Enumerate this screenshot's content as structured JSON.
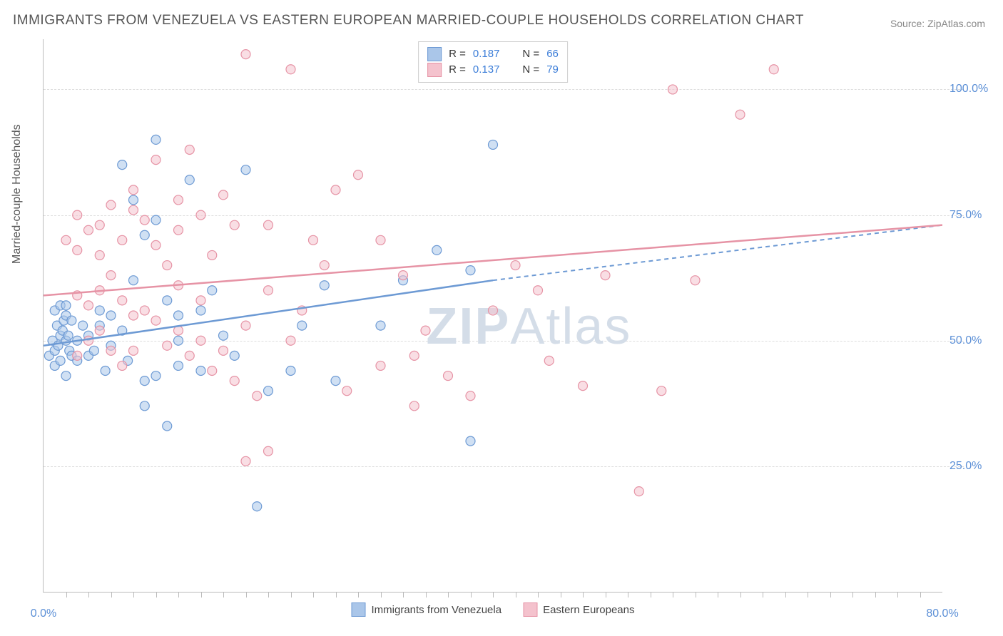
{
  "title": "IMMIGRANTS FROM VENEZUELA VS EASTERN EUROPEAN MARRIED-COUPLE HOUSEHOLDS CORRELATION CHART",
  "source": "Source: ZipAtlas.com",
  "y_axislabel": "Married-couple Households",
  "watermark_a": "ZIP",
  "watermark_b": "Atlas",
  "chart": {
    "type": "scatter",
    "xlim": [
      0,
      80
    ],
    "ylim": [
      0,
      110
    ],
    "x_ticks": [
      0,
      80
    ],
    "x_tick_labels": [
      "0.0%",
      "80.0%"
    ],
    "x_minor_ticks": [
      2,
      4,
      6,
      8,
      10,
      12,
      14,
      16,
      18,
      20,
      22,
      24,
      26,
      28,
      30,
      32,
      34,
      36,
      38,
      40,
      42,
      44,
      46,
      48,
      50,
      52,
      54,
      56,
      58,
      60,
      62,
      64,
      66,
      68,
      70,
      72,
      74,
      76,
      78
    ],
    "y_gridlines": [
      25,
      50,
      75,
      100
    ],
    "y_tick_labels": [
      "25.0%",
      "50.0%",
      "75.0%",
      "100.0%"
    ],
    "background_color": "#ffffff",
    "grid_color": "#dddddd",
    "point_radius": 6.5,
    "point_opacity": 0.55,
    "series": [
      {
        "name": "Immigrants from Venezuela",
        "fill": "#aac6e9",
        "stroke": "#6d9ad4",
        "R": "0.187",
        "N": "66",
        "trend": {
          "x1": 0,
          "y1": 49,
          "x2": 40,
          "y2": 62,
          "x2_dash": 80,
          "y2_dash": 73
        },
        "points": [
          [
            0.5,
            47
          ],
          [
            0.8,
            50
          ],
          [
            1,
            48
          ],
          [
            1.2,
            53
          ],
          [
            1,
            45
          ],
          [
            1.5,
            51
          ],
          [
            1.3,
            49
          ],
          [
            1.8,
            54
          ],
          [
            1.5,
            46
          ],
          [
            2,
            50
          ],
          [
            2,
            43
          ],
          [
            1.7,
            52
          ],
          [
            2.3,
            48
          ],
          [
            2,
            55
          ],
          [
            2.5,
            47
          ],
          [
            2.2,
            51
          ],
          [
            1,
            56
          ],
          [
            1.5,
            57
          ],
          [
            2,
            57
          ],
          [
            2.5,
            54
          ],
          [
            3,
            50
          ],
          [
            3.5,
            53
          ],
          [
            3,
            46
          ],
          [
            4,
            47
          ],
          [
            4,
            51
          ],
          [
            4.5,
            48
          ],
          [
            5,
            53
          ],
          [
            5,
            56
          ],
          [
            5.5,
            44
          ],
          [
            6,
            49
          ],
          [
            6,
            55
          ],
          [
            7,
            52
          ],
          [
            7.5,
            46
          ],
          [
            8,
            78
          ],
          [
            7,
            85
          ],
          [
            10,
            90
          ],
          [
            9,
            71
          ],
          [
            10,
            74
          ],
          [
            11,
            58
          ],
          [
            12,
            50
          ],
          [
            12,
            55
          ],
          [
            13,
            82
          ],
          [
            14,
            56
          ],
          [
            14,
            44
          ],
          [
            15,
            60
          ],
          [
            16,
            51
          ],
          [
            17,
            47
          ],
          [
            12,
            45
          ],
          [
            9,
            42
          ],
          [
            10,
            43
          ],
          [
            18,
            84
          ],
          [
            20,
            40
          ],
          [
            19,
            17
          ],
          [
            11,
            33
          ],
          [
            9,
            37
          ],
          [
            22,
            44
          ],
          [
            23,
            53
          ],
          [
            25,
            61
          ],
          [
            26,
            42
          ],
          [
            30,
            53
          ],
          [
            32,
            62
          ],
          [
            35,
            68
          ],
          [
            38,
            64
          ],
          [
            38,
            30
          ],
          [
            40,
            89
          ],
          [
            8,
            62
          ]
        ]
      },
      {
        "name": "Eastern Europeans",
        "fill": "#f4c2cd",
        "stroke": "#e693a5",
        "R": "0.137",
        "N": "79",
        "trend": {
          "x1": 0,
          "y1": 59,
          "x2": 80,
          "y2": 73
        },
        "points": [
          [
            2,
            70
          ],
          [
            3,
            68
          ],
          [
            3,
            75
          ],
          [
            4,
            72
          ],
          [
            5,
            73
          ],
          [
            5,
            67
          ],
          [
            6,
            77
          ],
          [
            7,
            70
          ],
          [
            8,
            76
          ],
          [
            8,
            80
          ],
          [
            9,
            74
          ],
          [
            10,
            69
          ],
          [
            10,
            86
          ],
          [
            12,
            78
          ],
          [
            12,
            72
          ],
          [
            13,
            88
          ],
          [
            14,
            75
          ],
          [
            15,
            67
          ],
          [
            16,
            79
          ],
          [
            17,
            73
          ],
          [
            18,
            107
          ],
          [
            6,
            63
          ],
          [
            5,
            60
          ],
          [
            7,
            58
          ],
          [
            8,
            55
          ],
          [
            9,
            56
          ],
          [
            4,
            57
          ],
          [
            3,
            59
          ],
          [
            10,
            54
          ],
          [
            11,
            49
          ],
          [
            12,
            52
          ],
          [
            13,
            47
          ],
          [
            14,
            50
          ],
          [
            15,
            44
          ],
          [
            16,
            48
          ],
          [
            17,
            42
          ],
          [
            18,
            53
          ],
          [
            18,
            26
          ],
          [
            20,
            28
          ],
          [
            19,
            39
          ],
          [
            20,
            60
          ],
          [
            22,
            50
          ],
          [
            23,
            56
          ],
          [
            25,
            65
          ],
          [
            26,
            80
          ],
          [
            27,
            40
          ],
          [
            28,
            83
          ],
          [
            30,
            70
          ],
          [
            30,
            45
          ],
          [
            32,
            63
          ],
          [
            33,
            47
          ],
          [
            33,
            37
          ],
          [
            34,
            52
          ],
          [
            36,
            43
          ],
          [
            38,
            39
          ],
          [
            40,
            56
          ],
          [
            42,
            65
          ],
          [
            44,
            60
          ],
          [
            45,
            46
          ],
          [
            48,
            41
          ],
          [
            50,
            63
          ],
          [
            53,
            20
          ],
          [
            55,
            40
          ],
          [
            58,
            62
          ],
          [
            56,
            100
          ],
          [
            62,
            95
          ],
          [
            65,
            104
          ],
          [
            22,
            104
          ],
          [
            3,
            47
          ],
          [
            4,
            50
          ],
          [
            6,
            48
          ],
          [
            5,
            52
          ],
          [
            11,
            65
          ],
          [
            12,
            61
          ],
          [
            14,
            58
          ],
          [
            20,
            73
          ],
          [
            24,
            70
          ],
          [
            7,
            45
          ],
          [
            8,
            48
          ]
        ]
      }
    ]
  },
  "legend_top": {
    "rows": [
      {
        "swatch_fill": "#aac6e9",
        "swatch_stroke": "#6d9ad4",
        "R_label": "R =",
        "R": "0.187",
        "N_label": "N =",
        "N": "66"
      },
      {
        "swatch_fill": "#f4c2cd",
        "swatch_stroke": "#e693a5",
        "R_label": "R =",
        "R": "0.137",
        "N_label": "N =",
        "N": "79"
      }
    ]
  },
  "legend_bottom": {
    "items": [
      {
        "swatch_fill": "#aac6e9",
        "swatch_stroke": "#6d9ad4",
        "label": "Immigrants from Venezuela"
      },
      {
        "swatch_fill": "#f4c2cd",
        "swatch_stroke": "#e693a5",
        "label": "Eastern Europeans"
      }
    ]
  }
}
